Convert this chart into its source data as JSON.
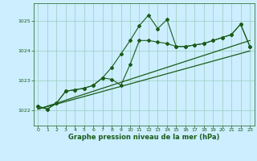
{
  "title": "Graphe pression niveau de la mer (hPa)",
  "bg_color": "#cceeff",
  "line_color": "#1a5c1a",
  "grid_color": "#99ccbb",
  "xlim": [
    -0.5,
    23.5
  ],
  "ylim": [
    1021.5,
    1025.6
  ],
  "yticks": [
    1022,
    1023,
    1024,
    1025
  ],
  "xticks": [
    0,
    1,
    2,
    3,
    4,
    5,
    6,
    7,
    8,
    9,
    10,
    11,
    12,
    13,
    14,
    15,
    16,
    17,
    18,
    19,
    20,
    21,
    22,
    23
  ],
  "series1": [
    1022.15,
    1022.05,
    1022.25,
    1022.65,
    1022.7,
    1022.75,
    1022.85,
    1023.1,
    1023.45,
    1023.9,
    1024.35,
    1024.85,
    1025.2,
    1024.75,
    1025.05,
    1024.15,
    1024.15,
    1024.2,
    1024.25,
    1024.35,
    1024.45,
    1024.55,
    1024.9,
    1024.15
  ],
  "series2": [
    1022.15,
    1022.05,
    1022.25,
    1022.65,
    1022.7,
    1022.75,
    1022.85,
    1023.1,
    1023.05,
    1022.85,
    1023.55,
    1024.35,
    1024.35,
    1024.3,
    1024.25,
    1024.15,
    1024.15,
    1024.2,
    1024.25,
    1024.35,
    1024.45,
    1024.55,
    1024.9,
    1024.15
  ],
  "trend_x": [
    0,
    23
  ],
  "trend_y": [
    1022.05,
    1024.35
  ],
  "trend2_y": [
    1022.05,
    1024.0
  ]
}
